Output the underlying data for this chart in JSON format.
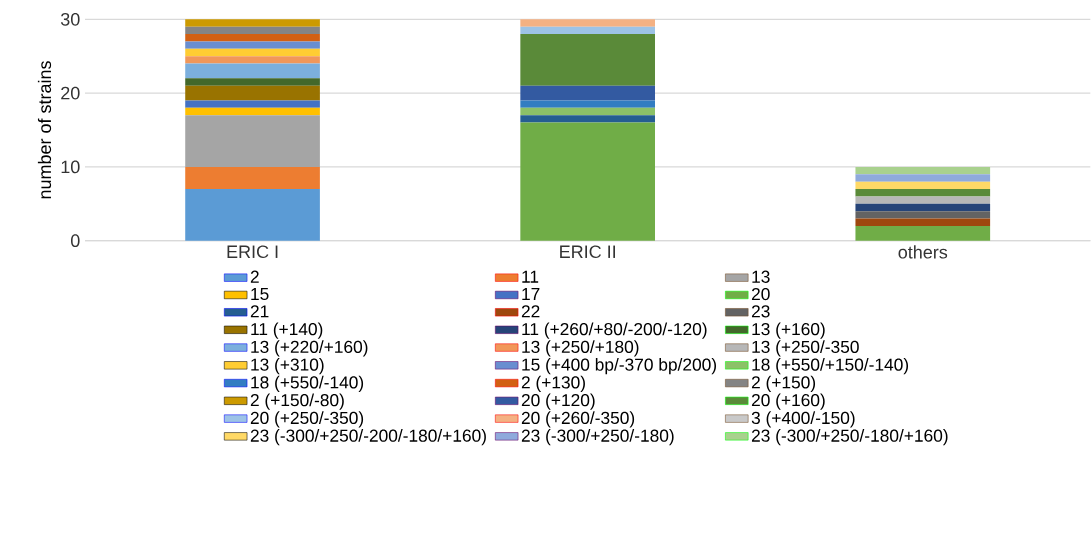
{
  "chart_data": {
    "type": "bar",
    "stacked": true,
    "ylabel": "number of strains",
    "categories": [
      "ERIC I",
      "ERIC II",
      "others"
    ],
    "ylim": [
      0,
      30
    ],
    "yticks": [
      0,
      10,
      20,
      30
    ],
    "grid": "y",
    "legend": "bottom",
    "series": [
      {
        "name": "2",
        "color": "#5b9bd5",
        "values": [
          7,
          null,
          null
        ]
      },
      {
        "name": "11",
        "color": "#ed7d31",
        "values": [
          3,
          null,
          null
        ]
      },
      {
        "name": "13",
        "color": "#a5a5a5",
        "values": [
          7,
          null,
          null
        ]
      },
      {
        "name": "15",
        "color": "#ffc000",
        "values": [
          1,
          null,
          null
        ]
      },
      {
        "name": "17",
        "color": "#4472c4",
        "values": [
          1,
          null,
          null
        ]
      },
      {
        "name": "20",
        "color": "#70ad47",
        "values": [
          null,
          16,
          2
        ]
      },
      {
        "name": "21",
        "color": "#255e91",
        "values": [
          null,
          1,
          null
        ]
      },
      {
        "name": "22",
        "color": "#9e480e",
        "values": [
          null,
          null,
          1
        ]
      },
      {
        "name": "23",
        "color": "#636363",
        "values": [
          null,
          null,
          1
        ]
      },
      {
        "name": "11 (+140)",
        "color": "#997300",
        "values": [
          2,
          null,
          null
        ]
      },
      {
        "name": "11 (+260/+80/-200/-120)",
        "color": "#264478",
        "values": [
          null,
          null,
          1
        ]
      },
      {
        "name": "13 (+160)",
        "color": "#43682b",
        "values": [
          1,
          null,
          null
        ]
      },
      {
        "name": "13 (+220/+160)",
        "color": "#7cafdd",
        "values": [
          2,
          null,
          null
        ]
      },
      {
        "name": "13 (+250/+180)",
        "color": "#f1975a",
        "values": [
          1,
          null,
          null
        ]
      },
      {
        "name": "13 (+250/-350",
        "color": "#b7b7b7",
        "values": [
          null,
          null,
          1
        ]
      },
      {
        "name": "13 (+310)",
        "color": "#ffcd33",
        "values": [
          1,
          null,
          null
        ]
      },
      {
        "name": "15 (+400 bp/-370 bp/200)",
        "color": "#698ed0",
        "values": [
          1,
          null,
          null
        ]
      },
      {
        "name": "18 (+550/+150/-140)",
        "color": "#8cc168",
        "values": [
          null,
          1,
          null
        ]
      },
      {
        "name": "18 (+550/-140)",
        "color": "#327dc2",
        "values": [
          null,
          1,
          null
        ]
      },
      {
        "name": "2 (+130)",
        "color": "#d26012",
        "values": [
          1,
          null,
          null
        ]
      },
      {
        "name": "2 (+150)",
        "color": "#848484",
        "values": [
          1,
          null,
          null
        ]
      },
      {
        "name": "2 (+150/-80)",
        "color": "#cc9a00",
        "values": [
          1,
          null,
          null
        ]
      },
      {
        "name": "20 (+120)",
        "color": "#335aa1",
        "values": [
          null,
          2,
          null
        ]
      },
      {
        "name": "20 (+160)",
        "color": "#5a8a39",
        "values": [
          null,
          7,
          1
        ]
      },
      {
        "name": "20 (+250/-350)",
        "color": "#9dc3e6",
        "values": [
          null,
          1,
          null
        ]
      },
      {
        "name": "20 (+260/-350)",
        "color": "#f4b183",
        "values": [
          null,
          1,
          null
        ]
      },
      {
        "name": "3 (+400/-150)",
        "color": "#c9c9c9",
        "values": [
          null,
          null,
          null
        ]
      },
      {
        "name": "23 (-300/+250/-200/-180/+160)",
        "color": "#ffd966",
        "values": [
          null,
          null,
          1
        ]
      },
      {
        "name": "23 (-300/+250/-180)",
        "color": "#8faadc",
        "values": [
          null,
          null,
          1
        ]
      },
      {
        "name": "23 (-300/+250/-180/+160)",
        "color": "#a9d18e",
        "values": [
          null,
          null,
          1
        ]
      }
    ]
  }
}
